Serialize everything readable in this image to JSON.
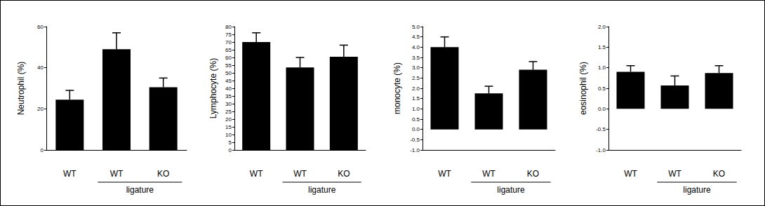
{
  "chart_data": [
    {
      "type": "bar",
      "y_label": "Neutrophil (%)",
      "categories": [
        "WT",
        "WT",
        "KO"
      ],
      "values": [
        24.5,
        49,
        30.5
      ],
      "errors": [
        4.5,
        8,
        4.5
      ],
      "color": "#000000",
      "ylim": [
        0,
        60
      ],
      "yticks": [
        0,
        20,
        40,
        60
      ],
      "annotations": [
        {
          "text": "ligature",
          "from": 1,
          "to": 2
        }
      ]
    },
    {
      "type": "bar",
      "y_label": "Lymphocyte (%)",
      "categories": [
        "WT",
        "WT",
        "KO"
      ],
      "values": [
        70,
        53.5,
        60.5
      ],
      "errors": [
        6,
        6.5,
        7.5
      ],
      "color": "#000000",
      "ylim": [
        0,
        80
      ],
      "yticks": [
        0,
        5,
        10,
        15,
        20,
        25,
        30,
        35,
        40,
        45,
        50,
        55,
        60,
        65,
        70,
        75,
        80
      ],
      "annotations": [
        {
          "text": "ligature",
          "from": 1,
          "to": 2
        }
      ]
    },
    {
      "type": "bar",
      "y_label": "monocyte (%)",
      "categories": [
        "WT",
        "WT",
        "KO"
      ],
      "values": [
        4.0,
        1.75,
        2.9
      ],
      "errors": [
        0.5,
        0.35,
        0.4
      ],
      "color": "#000000",
      "ylim": [
        -1.0,
        5.0
      ],
      "yticks": [
        {
          "value": -1,
          "label": "-1.0"
        },
        -0.5,
        {
          "value": 0,
          "label": "0.0"
        },
        0.5,
        {
          "value": 1,
          "label": "1.0"
        },
        1.5,
        {
          "value": 2,
          "label": "2.0"
        },
        2.5,
        {
          "value": 3,
          "label": "3.0"
        },
        3.5,
        {
          "value": 4,
          "label": "4.0"
        },
        4.5,
        {
          "value": 5,
          "label": "5.0"
        }
      ],
      "annotations": [
        {
          "text": "ligature",
          "from": 1,
          "to": 2
        }
      ]
    },
    {
      "type": "bar",
      "y_label": "eosinophil (%)",
      "categories": [
        "WT",
        "WT",
        "KO"
      ],
      "values": [
        0.9,
        0.57,
        0.87
      ],
      "errors": [
        0.15,
        0.23,
        0.18
      ],
      "color": "#000000",
      "ylim": [
        -1.0,
        2.0
      ],
      "yticks": [
        {
          "value": -1,
          "label": "-1.0"
        },
        -0.5,
        {
          "value": 0,
          "label": "0.0"
        },
        0.5,
        {
          "value": 1,
          "label": "1.0"
        },
        1.5,
        {
          "value": 2,
          "label": "2.0"
        }
      ],
      "annotations": [
        {
          "text": "ligature",
          "from": 1,
          "to": 2
        }
      ]
    }
  ]
}
